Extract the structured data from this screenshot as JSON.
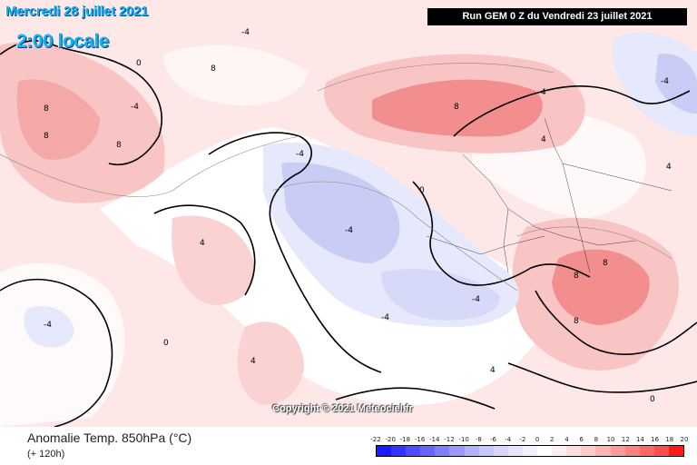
{
  "header": {
    "date": "Mercredi 28 juillet 2021",
    "time": "2:00 locale",
    "run": "Run GEM 0 Z du Vendredi 23 juillet 2021"
  },
  "copyright": "Copyright © 2021 Meteociel.fr",
  "footer": {
    "product": "Anomalie Temp. 850hPa (°C)",
    "lead": "(+ 120h)"
  },
  "legend": {
    "labels": [
      "-22",
      "-20",
      "-18",
      "-16",
      "-14",
      "-12",
      "-10",
      "-8",
      "-6",
      "-4",
      "-2",
      "0",
      "2",
      "4",
      "6",
      "8",
      "10",
      "12",
      "14",
      "16",
      "18",
      "20"
    ],
    "colors": [
      "#1a1aff",
      "#3333ff",
      "#4d4dff",
      "#6666ff",
      "#7f7fff",
      "#9999ff",
      "#b2b2ff",
      "#c7c7ff",
      "#d6d6ff",
      "#e4e4ff",
      "#f2f2ff",
      "#ffffff",
      "#fff0f0",
      "#ffe0e0",
      "#ffcccc",
      "#ffb3b3",
      "#ff9999",
      "#ff8080",
      "#ff6666",
      "#ff4d4d",
      "#ff1a1a"
    ]
  },
  "map": {
    "isotherm_labels": [
      "0",
      "4",
      "8",
      "-4"
    ],
    "colors": {
      "warm_light": "#fde3e3",
      "warm_mid": "#f9c4c4",
      "warm_strong": "#f28e8e",
      "cold_light": "#e6e8fb",
      "cold_mid": "#c9cdf5",
      "neutral": "#ffffff",
      "coast": "#000000"
    }
  }
}
